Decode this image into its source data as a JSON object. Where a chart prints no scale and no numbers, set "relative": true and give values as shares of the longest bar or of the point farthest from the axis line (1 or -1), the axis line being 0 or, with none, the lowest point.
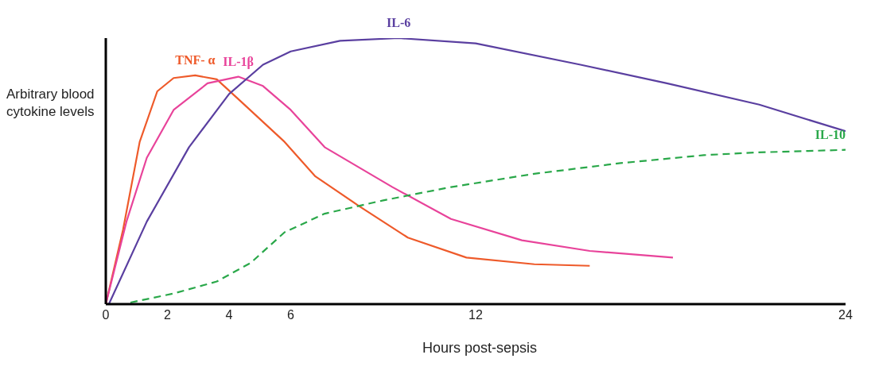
{
  "chart_data": {
    "type": "line",
    "relative": true,
    "xlabel": "Hours post-sepsis",
    "ylabel": "Arbitrary blood cytokine levels",
    "xlim": [
      0,
      24
    ],
    "xticks": [
      0,
      2,
      4,
      6,
      12,
      24
    ],
    "grid": false,
    "legend": false,
    "marker": "none",
    "series": [
      {
        "name": "TNF- α",
        "color": "#ee5a2a",
        "line_style": "solid",
        "x": [
          0,
          0.56,
          1.1,
          1.67,
          2.2,
          2.9,
          3.6,
          4.4,
          5.8,
          6.8,
          8.2,
          9.8,
          11.7,
          13.9,
          15.7
        ],
        "values": [
          0,
          0.28,
          0.61,
          0.8,
          0.85,
          0.86,
          0.845,
          0.76,
          0.61,
          0.48,
          0.37,
          0.25,
          0.175,
          0.15,
          0.144
        ]
      },
      {
        "name": "IL-1β",
        "color": "#e8439a",
        "line_style": "solid",
        "x": [
          0,
          0.67,
          1.33,
          2.2,
          3.3,
          4.3,
          5.1,
          6,
          7.1,
          9.3,
          11.2,
          13.5,
          15.7,
          18.4
        ],
        "values": [
          0,
          0.31,
          0.55,
          0.73,
          0.83,
          0.855,
          0.82,
          0.73,
          0.59,
          0.44,
          0.32,
          0.24,
          0.2,
          0.175
        ]
      },
      {
        "name": "IL-6",
        "color": "#5a3fa0",
        "line_style": "solid",
        "x": [
          0.1,
          1.33,
          2.7,
          4,
          5.1,
          6,
          7.6,
          9.5,
          12,
          15.4,
          18.2,
          21.2,
          24
        ],
        "values": [
          0,
          0.31,
          0.59,
          0.79,
          0.9,
          0.95,
          0.99,
          1,
          0.98,
          0.9,
          0.83,
          0.75,
          0.65
        ]
      },
      {
        "name": "IL-10",
        "color": "#2aa84a",
        "line_style": "dashed",
        "x": [
          0.8,
          2.2,
          3.6,
          4.7,
          5.8,
          7.1,
          9,
          11.2,
          13.9,
          16.7,
          19.4,
          21.1,
          24
        ],
        "values": [
          0.006,
          0.04,
          0.085,
          0.155,
          0.27,
          0.34,
          0.39,
          0.44,
          0.49,
          0.53,
          0.56,
          0.57,
          0.58
        ]
      }
    ]
  }
}
